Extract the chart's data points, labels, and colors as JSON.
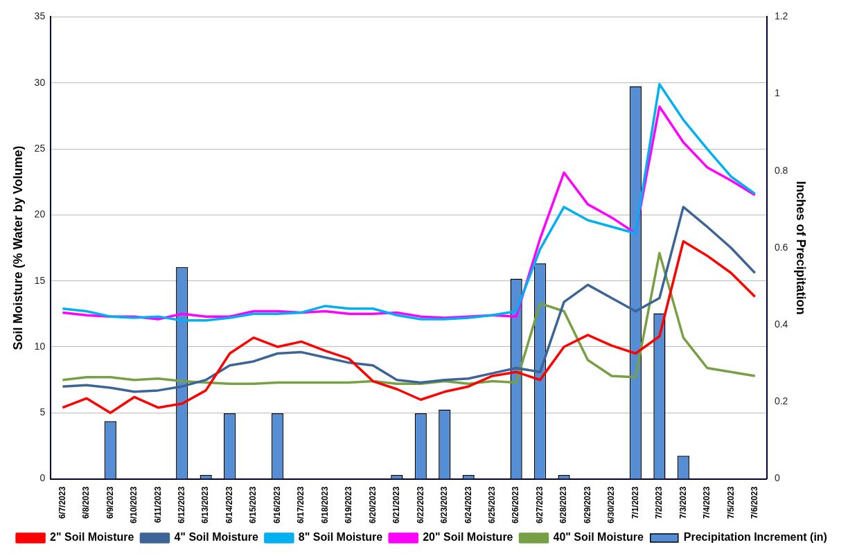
{
  "chart_data": {
    "type": "line",
    "ylabel": "Soil Moisture (% Water by Volume)",
    "y2label": "Inches of Precipitation",
    "categories": [
      "6/7/2023",
      "6/8/2023",
      "6/9/2023",
      "6/10/2023",
      "6/11/2023",
      "6/12/2023",
      "6/13/2023",
      "6/14/2023",
      "6/15/2023",
      "6/16/2023",
      "6/17/2023",
      "6/18/2023",
      "6/19/2023",
      "6/20/2023",
      "6/21/2023",
      "6/22/2023",
      "6/23/2023",
      "6/24/2023",
      "6/25/2023",
      "6/26/2023",
      "6/27/2023",
      "6/28/2023",
      "6/29/2023",
      "6/30/2023",
      "7/1/2023",
      "7/2/2023",
      "7/3/2023",
      "7/4/2023",
      "7/5/2023",
      "7/6/2023"
    ],
    "ylim": [
      0,
      35
    ],
    "yticks": [
      0,
      5,
      10,
      15,
      20,
      25,
      30,
      35
    ],
    "y2lim": [
      0,
      1.2
    ],
    "y2ticks": [
      0,
      0.2,
      0.4,
      0.6,
      0.8,
      1,
      1.2
    ],
    "grid": "y",
    "legend": "bottom",
    "marker": "none",
    "series": [
      {
        "name": "Precipitation Increment (in)",
        "type": "bar",
        "axis": "y2",
        "color": "#558ed5",
        "values": [
          0,
          0,
          0.15,
          0,
          0,
          0.55,
          0.01,
          0.17,
          0,
          0.17,
          0,
          0,
          0,
          0,
          0.01,
          0.17,
          0.18,
          0.01,
          0,
          0.52,
          0.56,
          0.01,
          0,
          0,
          1.02,
          0.43,
          0.06,
          0,
          0,
          0
        ]
      },
      {
        "name": "2\" Soil Moisture",
        "color": "#ff0000",
        "values": [
          5.4,
          6.1,
          5.0,
          6.2,
          5.4,
          5.7,
          6.7,
          9.5,
          10.7,
          10.0,
          10.4,
          9.7,
          9.1,
          7.4,
          6.8,
          6.0,
          6.6,
          7.0,
          7.8,
          8.1,
          7.5,
          10.0,
          10.9,
          10.1,
          9.5,
          10.8,
          18.0,
          16.9,
          15.6,
          13.8
        ]
      },
      {
        "name": "4\" Soil Moisture",
        "color": "#3c6496",
        "values": [
          7.0,
          7.1,
          6.9,
          6.6,
          6.7,
          7.0,
          7.5,
          8.6,
          8.9,
          9.5,
          9.6,
          9.2,
          8.8,
          8.6,
          7.5,
          7.3,
          7.5,
          7.6,
          8.0,
          8.4,
          8.1,
          13.4,
          14.7,
          13.7,
          12.7,
          13.7,
          20.6,
          19.1,
          17.5,
          15.6
        ]
      },
      {
        "name": "8\" Soil Moisture",
        "color": "#00b0f0",
        "values": [
          12.9,
          12.7,
          12.3,
          12.2,
          12.3,
          12.0,
          12.0,
          12.2,
          12.5,
          12.5,
          12.6,
          13.1,
          12.9,
          12.9,
          12.4,
          12.1,
          12.1,
          12.2,
          12.4,
          12.7,
          17.4,
          20.6,
          19.6,
          19.1,
          18.6,
          29.9,
          27.2,
          25.0,
          22.9,
          21.6
        ]
      },
      {
        "name": "20\" Soil Moisture",
        "color": "#ff00ff",
        "values": [
          12.6,
          12.4,
          12.3,
          12.3,
          12.1,
          12.5,
          12.3,
          12.3,
          12.7,
          12.7,
          12.6,
          12.7,
          12.5,
          12.5,
          12.6,
          12.3,
          12.2,
          12.3,
          12.4,
          12.3,
          18.2,
          23.2,
          20.8,
          19.8,
          18.6,
          28.2,
          25.5,
          23.6,
          22.6,
          21.5
        ]
      },
      {
        "name": "40\" Soil Moisture",
        "color": "#77a045",
        "values": [
          7.5,
          7.7,
          7.7,
          7.5,
          7.6,
          7.4,
          7.3,
          7.2,
          7.2,
          7.3,
          7.3,
          7.3,
          7.3,
          7.4,
          7.2,
          7.2,
          7.4,
          7.2,
          7.4,
          7.3,
          13.3,
          12.7,
          9.0,
          7.8,
          7.7,
          17.1,
          10.7,
          8.4,
          8.1,
          7.8
        ]
      }
    ]
  }
}
